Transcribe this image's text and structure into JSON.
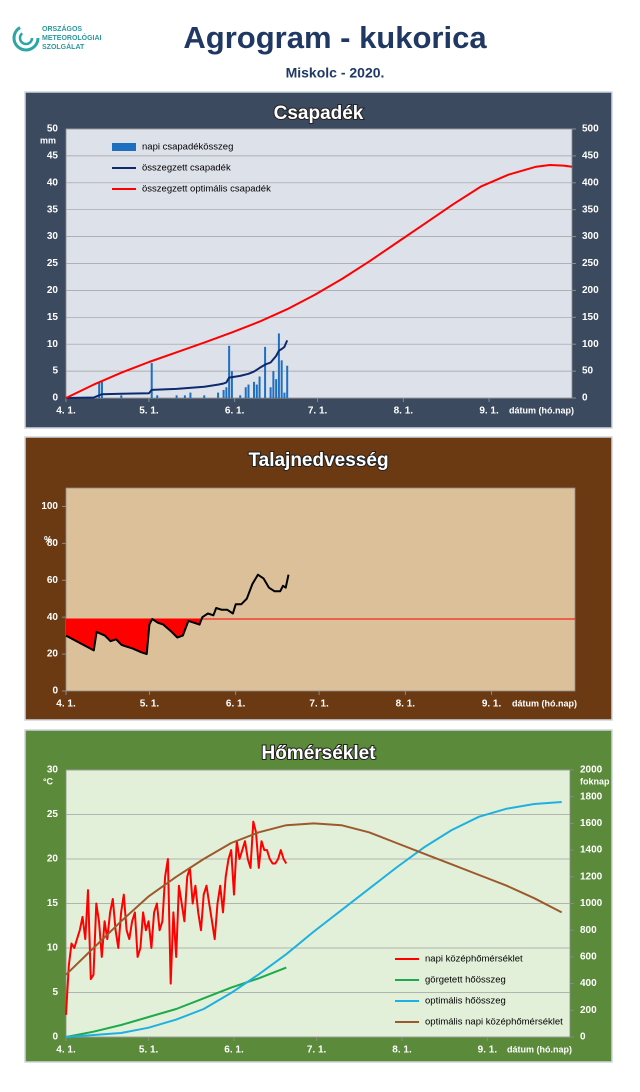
{
  "header": {
    "logo": [
      "ORSZÁGOS",
      "METEOROLÓGIAI",
      "SZOLGÁLAT"
    ],
    "title": "Agrogram - kukorica",
    "subtitle": "Miskolc - 2020."
  },
  "chart_data": [
    {
      "type": "combo",
      "title": "Csapadék",
      "background": "#3b4a5e",
      "plot_background": "#dde1ea",
      "grid": true,
      "legend": "top-left",
      "xlim": [
        0,
        183
      ],
      "xticks": [
        {
          "value": 0,
          "label": "4. 1."
        },
        {
          "value": 30,
          "label": "5. 1."
        },
        {
          "value": 61,
          "label": "6. 1."
        },
        {
          "value": 91,
          "label": "7. 1."
        },
        {
          "value": 122,
          "label": "8. 1."
        },
        {
          "value": 153,
          "label": "9. 1."
        }
      ],
      "xlabel": "dátum (hó.nap)",
      "ylim": [
        0,
        50
      ],
      "yticks": [
        0,
        5,
        10,
        15,
        20,
        25,
        30,
        35,
        40,
        45,
        50
      ],
      "y_unit": "mm",
      "y2lim": [
        0,
        500
      ],
      "y2ticks": [
        0,
        50,
        100,
        150,
        200,
        250,
        300,
        350,
        400,
        450,
        500
      ],
      "series": [
        {
          "name": "napi csapadékösszeg",
          "type": "bar",
          "color": "#1f6fc0",
          "x": [
            12,
            13,
            20,
            31,
            33,
            40,
            43,
            45,
            50,
            55,
            57,
            58,
            59,
            60,
            63,
            65,
            66,
            68,
            69,
            70,
            72,
            74,
            75,
            76,
            77,
            78,
            79,
            80
          ],
          "values": [
            3,
            3,
            0.5,
            6.5,
            0.5,
            0.5,
            0.5,
            1,
            0.5,
            1,
            1.5,
            2,
            9.7,
            5,
            0.5,
            2,
            2.5,
            3,
            2.5,
            4,
            9.5,
            2,
            5,
            3.5,
            12,
            7,
            1,
            6
          ]
        },
        {
          "name": "összegzett csapadék",
          "type": "line",
          "axis": "y2",
          "color": "#0e2a6e",
          "x": [
            0,
            10,
            11,
            12,
            13,
            20,
            30,
            31,
            40,
            50,
            55,
            57,
            58,
            59,
            63,
            66,
            68,
            70,
            72,
            74,
            76,
            77,
            78,
            79,
            80
          ],
          "values": [
            0,
            1,
            3,
            5,
            7,
            8,
            9,
            15,
            17,
            21,
            25,
            27,
            29,
            38,
            41,
            45,
            49,
            56,
            62,
            66,
            78,
            88,
            91,
            95,
            107
          ]
        },
        {
          "name": "összegzett optimális  csapadék",
          "type": "line",
          "axis": "y2",
          "color": "#ff0000",
          "x": [
            0,
            10,
            20,
            30,
            40,
            50,
            60,
            70,
            80,
            90,
            100,
            110,
            120,
            130,
            140,
            150,
            160,
            170,
            175,
            180,
            183
          ],
          "values": [
            0,
            25,
            47,
            67,
            85,
            103,
            122,
            142,
            165,
            192,
            222,
            255,
            290,
            325,
            360,
            393,
            415,
            430,
            433,
            432,
            430
          ]
        }
      ]
    },
    {
      "type": "line",
      "title": "Talajnedvesség",
      "background": "#6b3a12",
      "plot_background": "#dcc09a",
      "grid": false,
      "xlim": [
        0,
        183
      ],
      "xticks": [
        {
          "value": 0,
          "label": "4. 1."
        },
        {
          "value": 30,
          "label": "5. 1."
        },
        {
          "value": 61,
          "label": "6. 1."
        },
        {
          "value": 91,
          "label": "7. 1."
        },
        {
          "value": 122,
          "label": "8. 1."
        },
        {
          "value": 153,
          "label": "9. 1."
        }
      ],
      "xlabel": "dátum (hó.nap)",
      "ylim": [
        0,
        110
      ],
      "yticks": [
        0,
        20,
        40,
        60,
        80,
        100
      ],
      "y_unit": "%",
      "threshold": 39,
      "threshold_color": "#ff0000",
      "fill_color": "#ff0000",
      "series": [
        {
          "color": "#000000",
          "x": [
            0,
            5,
            10,
            11,
            14,
            16,
            18,
            20,
            24,
            27,
            29,
            30,
            31,
            33,
            35,
            38,
            40,
            42,
            44,
            46,
            48,
            49,
            51,
            53,
            54,
            56,
            58,
            60,
            61,
            63,
            65,
            67,
            69,
            71,
            73,
            75,
            77,
            78,
            79,
            80
          ],
          "values": [
            30,
            26,
            22,
            32,
            30,
            27,
            28,
            25,
            23,
            21,
            20,
            36,
            39,
            37,
            36,
            32,
            29,
            30,
            38,
            37,
            36,
            40,
            42,
            41,
            45,
            44,
            44,
            42,
            47,
            47,
            50,
            58,
            63,
            61,
            56,
            54,
            54,
            57,
            56,
            63
          ]
        }
      ]
    },
    {
      "type": "combo",
      "title": "Hőmérséklet",
      "background": "#5a8a3a",
      "plot_background": "#e2f0d9",
      "grid": true,
      "legend": "bottom-right",
      "xlim": [
        0,
        183
      ],
      "xticks": [
        {
          "value": 0,
          "label": "4. 1."
        },
        {
          "value": 30,
          "label": "5. 1."
        },
        {
          "value": 61,
          "label": "6. 1."
        },
        {
          "value": 91,
          "label": "7. 1."
        },
        {
          "value": 122,
          "label": "8. 1."
        },
        {
          "value": 153,
          "label": "9. 1."
        }
      ],
      "xlabel": "dátum (hó.nap)",
      "ylim": [
        0,
        30
      ],
      "yticks": [
        0,
        5,
        10,
        15,
        20,
        25,
        30
      ],
      "y_unit": "°C",
      "y2lim": [
        0,
        2000
      ],
      "y2ticks": [
        0,
        200,
        400,
        600,
        800,
        1000,
        1200,
        1400,
        1600,
        1800,
        2000
      ],
      "y2_unit": "foknap",
      "series": [
        {
          "name": "napi középhőmérséklet",
          "type": "line",
          "color": "#ff0000",
          "x": [
            0,
            1,
            2,
            3,
            4,
            5,
            6,
            7,
            8,
            9,
            10,
            11,
            12,
            13,
            14,
            15,
            16,
            17,
            18,
            19,
            20,
            21,
            22,
            23,
            24,
            25,
            26,
            27,
            28,
            29,
            30,
            31,
            32,
            33,
            34,
            35,
            36,
            37,
            38,
            39,
            40,
            41,
            42,
            43,
            44,
            45,
            46,
            47,
            48,
            49,
            50,
            51,
            52,
            53,
            54,
            55,
            56,
            57,
            58,
            59,
            60,
            61,
            62,
            63,
            64,
            65,
            66,
            67,
            68,
            69,
            70,
            71,
            72,
            73,
            74,
            75,
            76,
            77,
            78,
            79,
            80
          ],
          "values": [
            2.5,
            8,
            10.5,
            10,
            11,
            12,
            13.5,
            11,
            16.5,
            6.5,
            7,
            15,
            13,
            9,
            13,
            11,
            14,
            15.5,
            12,
            10,
            14,
            16,
            12,
            11,
            13,
            14,
            9,
            10,
            14,
            12,
            13,
            10,
            14,
            15,
            12,
            13,
            18,
            20,
            6,
            14,
            9,
            17,
            15,
            13,
            18,
            19,
            15,
            17,
            14,
            12,
            16,
            17,
            15,
            13,
            11,
            15,
            17,
            14,
            18,
            20,
            21,
            16,
            22,
            20,
            21,
            22,
            20,
            19,
            24.2,
            23,
            19,
            22,
            21,
            21,
            20,
            19.5,
            19.5,
            20,
            21,
            20,
            19.5
          ]
        },
        {
          "name": "görgetett hőösszeg",
          "type": "line",
          "axis": "y2",
          "color": "#1daa4a",
          "x": [
            0,
            10,
            20,
            30,
            40,
            50,
            60,
            70,
            80
          ],
          "values": [
            0,
            40,
            90,
            150,
            210,
            290,
            370,
            440,
            520
          ]
        },
        {
          "name": "optimális hőösszeg",
          "type": "line",
          "axis": "y2",
          "color": "#1fb0e0",
          "x": [
            0,
            20,
            30,
            40,
            50,
            60,
            70,
            80,
            90,
            100,
            110,
            120,
            130,
            140,
            150,
            160,
            170,
            180
          ],
          "values": [
            0,
            30,
            70,
            130,
            210,
            330,
            470,
            620,
            790,
            950,
            1110,
            1270,
            1420,
            1550,
            1650,
            1710,
            1745,
            1760
          ]
        },
        {
          "name": "optimális napi középhőmérséklet",
          "type": "line",
          "color": "#9c5a2c",
          "x": [
            0,
            10,
            20,
            30,
            40,
            50,
            60,
            70,
            80,
            90,
            100,
            110,
            120,
            130,
            140,
            150,
            160,
            170,
            180
          ],
          "values": [
            7,
            10,
            13,
            15.8,
            18,
            20,
            21.8,
            23,
            23.8,
            24,
            23.8,
            23,
            21.8,
            20.6,
            19.4,
            18.2,
            17,
            15.6,
            14
          ]
        }
      ]
    }
  ]
}
